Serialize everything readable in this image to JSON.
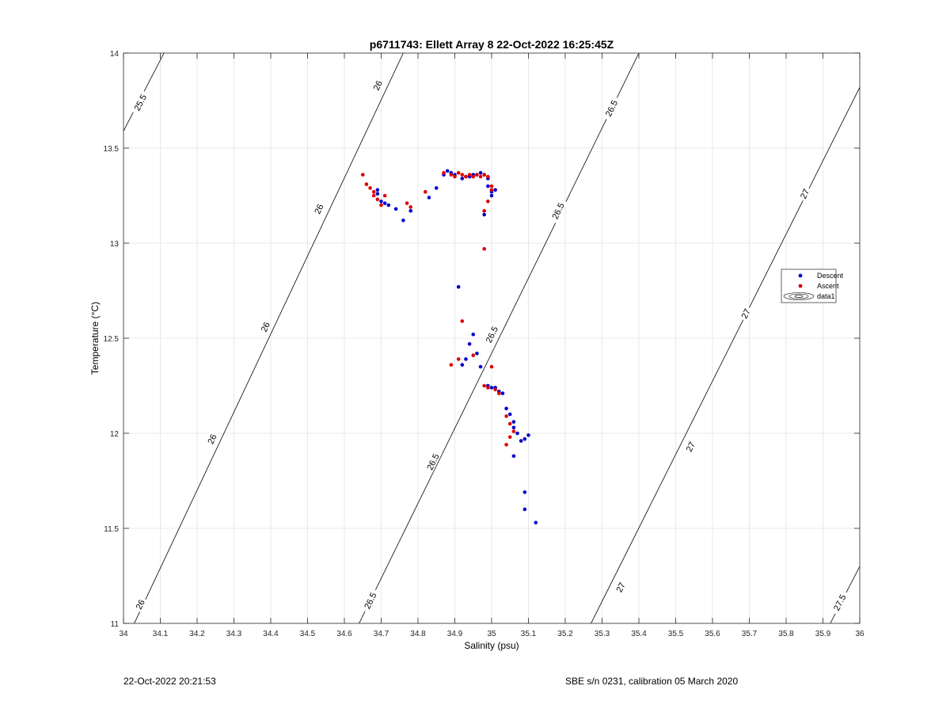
{
  "footer": {
    "timestamp": "22-Oct-2022 20:21:53",
    "instrument": "SBE s/n 0231, calibration 05 March 2020"
  },
  "chart_data": {
    "type": "scatter",
    "title": "p6711743: Ellett Array 8 22-Oct-2022 16:25:45Z",
    "xlabel": "Salinity (psu)",
    "ylabel": "Temperature (°C)",
    "xlim": [
      34,
      36
    ],
    "ylim": [
      11,
      14
    ],
    "xticks": [
      34,
      34.1,
      34.2,
      34.3,
      34.4,
      34.5,
      34.6,
      34.7,
      34.8,
      34.9,
      35,
      35.1,
      35.2,
      35.3,
      35.4,
      35.5,
      35.6,
      35.7,
      35.8,
      35.9,
      36
    ],
    "xtick_labels": [
      "34",
      "34.1",
      "34.2",
      "34.3",
      "34.4",
      "34.5",
      "34.6",
      "34.7",
      "34.8",
      "34.9",
      "35",
      "35.1",
      "35.2",
      "35.3",
      "35.4",
      "35.5",
      "35.6",
      "35.7",
      "35.8",
      "35.9",
      "36"
    ],
    "yticks": [
      11,
      11.5,
      12,
      12.5,
      13,
      13.5,
      14
    ],
    "ytick_labels": [
      "11",
      "11.5",
      "12",
      "12.5",
      "13",
      "13.5",
      "14"
    ],
    "grid": true,
    "legend_position": "right",
    "legend": [
      {
        "label": "Descent",
        "color": "#0000cc",
        "kind": "marker"
      },
      {
        "label": "Ascent",
        "color": "#dd0000",
        "kind": "marker"
      },
      {
        "label": "data1",
        "color": "#000000",
        "kind": "contour"
      }
    ],
    "contours": [
      {
        "level": "25.5",
        "points": [
          [
            34.0,
            13.59
          ],
          [
            34.11,
            14.0
          ]
        ],
        "labels": [
          {
            "x": 34.045,
            "y": 13.74
          }
        ]
      },
      {
        "level": "26",
        "points": [
          [
            34.0,
            10.88
          ],
          [
            34.76,
            14.0
          ]
        ],
        "labels": [
          {
            "x": 34.69,
            "y": 13.83
          },
          {
            "x": 34.53,
            "y": 13.18
          },
          {
            "x": 34.385,
            "y": 12.56
          },
          {
            "x": 34.24,
            "y": 11.97
          },
          {
            "x": 34.045,
            "y": 11.1
          }
        ]
      },
      {
        "level": "26.5",
        "points": [
          [
            34.64,
            11.0
          ],
          [
            35.4,
            14.0
          ]
        ],
        "labels": [
          {
            "x": 35.325,
            "y": 13.71
          },
          {
            "x": 35.18,
            "y": 13.17
          },
          {
            "x": 35.0,
            "y": 12.52
          },
          {
            "x": 34.84,
            "y": 11.85
          },
          {
            "x": 34.67,
            "y": 11.12
          }
        ]
      },
      {
        "level": "27",
        "points": [
          [
            35.27,
            11.0
          ],
          [
            36.0,
            13.82
          ]
        ],
        "labels": [
          {
            "x": 35.85,
            "y": 13.26
          },
          {
            "x": 35.69,
            "y": 12.63
          },
          {
            "x": 35.54,
            "y": 11.93
          },
          {
            "x": 35.35,
            "y": 11.19
          }
        ]
      },
      {
        "level": "27.5",
        "points": [
          [
            35.92,
            11.0
          ],
          [
            36.0,
            11.3
          ]
        ],
        "labels": [
          {
            "x": 35.945,
            "y": 11.11
          }
        ]
      }
    ],
    "series": [
      {
        "name": "Descent",
        "color": "#0000cc",
        "points": [
          [
            34.69,
            13.28
          ],
          [
            34.69,
            13.26
          ],
          [
            34.7,
            13.22
          ],
          [
            34.71,
            13.21
          ],
          [
            34.72,
            13.2
          ],
          [
            34.74,
            13.18
          ],
          [
            34.76,
            13.12
          ],
          [
            34.78,
            13.17
          ],
          [
            34.83,
            13.24
          ],
          [
            34.85,
            13.29
          ],
          [
            34.87,
            13.36
          ],
          [
            34.88,
            13.38
          ],
          [
            34.89,
            13.37
          ],
          [
            34.9,
            13.36
          ],
          [
            34.92,
            13.34
          ],
          [
            34.93,
            13.35
          ],
          [
            34.94,
            13.35
          ],
          [
            34.95,
            13.36
          ],
          [
            34.96,
            13.36
          ],
          [
            34.97,
            13.37
          ],
          [
            34.98,
            13.36
          ],
          [
            34.99,
            13.34
          ],
          [
            34.99,
            13.3
          ],
          [
            35.0,
            13.27
          ],
          [
            35.0,
            13.25
          ],
          [
            35.01,
            13.28
          ],
          [
            34.98,
            13.15
          ],
          [
            34.91,
            12.77
          ],
          [
            34.95,
            12.52
          ],
          [
            34.94,
            12.47
          ],
          [
            34.92,
            12.36
          ],
          [
            34.93,
            12.39
          ],
          [
            34.96,
            12.42
          ],
          [
            34.97,
            12.35
          ],
          [
            34.99,
            12.25
          ],
          [
            35.0,
            12.24
          ],
          [
            35.01,
            12.24
          ],
          [
            35.02,
            12.22
          ],
          [
            35.03,
            12.21
          ],
          [
            35.04,
            12.13
          ],
          [
            35.05,
            12.1
          ],
          [
            35.06,
            12.06
          ],
          [
            35.06,
            12.03
          ],
          [
            35.07,
            12.0
          ],
          [
            35.08,
            11.96
          ],
          [
            35.09,
            11.97
          ],
          [
            35.1,
            11.99
          ],
          [
            35.06,
            11.88
          ],
          [
            35.09,
            11.69
          ],
          [
            35.09,
            11.6
          ],
          [
            35.12,
            11.53
          ]
        ]
      },
      {
        "name": "Ascent",
        "color": "#dd0000",
        "points": [
          [
            34.65,
            13.36
          ],
          [
            34.66,
            13.31
          ],
          [
            34.67,
            13.29
          ],
          [
            34.68,
            13.27
          ],
          [
            34.68,
            13.25
          ],
          [
            34.69,
            13.23
          ],
          [
            34.7,
            13.2
          ],
          [
            34.71,
            13.25
          ],
          [
            34.77,
            13.21
          ],
          [
            34.78,
            13.19
          ],
          [
            34.82,
            13.27
          ],
          [
            34.87,
            13.37
          ],
          [
            34.89,
            13.36
          ],
          [
            34.9,
            13.35
          ],
          [
            34.91,
            13.37
          ],
          [
            34.92,
            13.36
          ],
          [
            34.93,
            13.35
          ],
          [
            34.94,
            13.36
          ],
          [
            34.95,
            13.35
          ],
          [
            34.96,
            13.36
          ],
          [
            34.97,
            13.35
          ],
          [
            34.98,
            13.36
          ],
          [
            34.99,
            13.35
          ],
          [
            35.0,
            13.3
          ],
          [
            35.0,
            13.28
          ],
          [
            34.99,
            13.22
          ],
          [
            34.98,
            13.17
          ],
          [
            34.98,
            12.97
          ],
          [
            34.92,
            12.59
          ],
          [
            34.89,
            12.36
          ],
          [
            34.91,
            12.39
          ],
          [
            34.95,
            12.41
          ],
          [
            35.0,
            12.35
          ],
          [
            34.98,
            12.25
          ],
          [
            34.99,
            12.24
          ],
          [
            35.01,
            12.23
          ],
          [
            35.02,
            12.21
          ],
          [
            35.04,
            12.09
          ],
          [
            35.05,
            12.05
          ],
          [
            35.06,
            12.01
          ],
          [
            35.05,
            11.98
          ],
          [
            35.04,
            11.94
          ]
        ]
      }
    ]
  }
}
